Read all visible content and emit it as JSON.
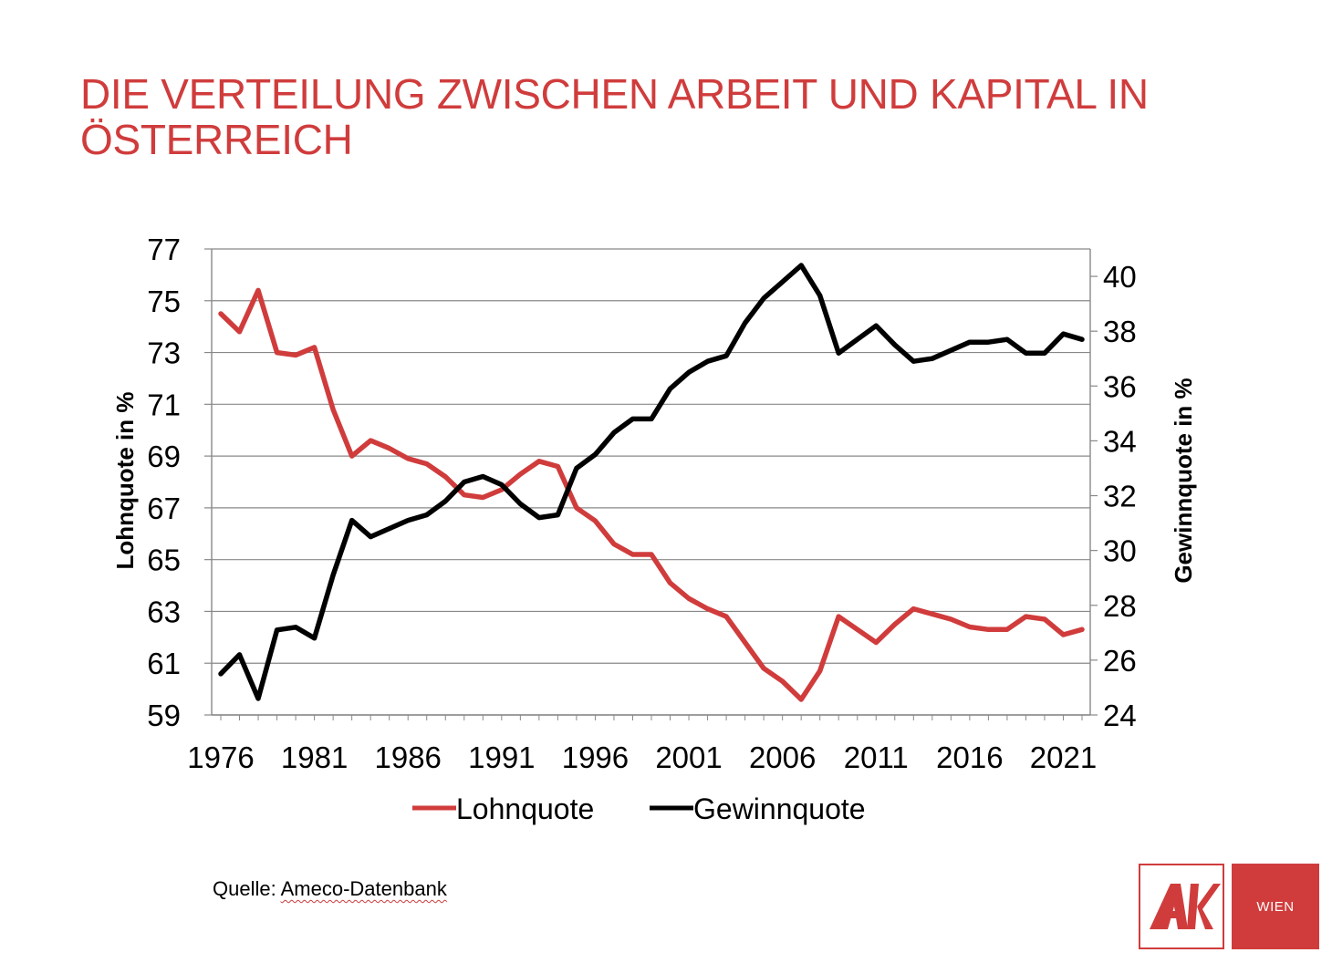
{
  "title": "DIE VERTEILUNG ZWISCHEN ARBEIT UND KAPITAL IN ÖSTERREICH",
  "source_label": "Quelle: ",
  "source_name": "Ameco-Datenbank",
  "logo": {
    "wien_label": "WIEN",
    "brand_color": "#d03c3c"
  },
  "chart_data": {
    "type": "line",
    "x": [
      1976,
      1977,
      1978,
      1979,
      1980,
      1981,
      1982,
      1983,
      1984,
      1985,
      1986,
      1987,
      1988,
      1989,
      1990,
      1991,
      1992,
      1993,
      1994,
      1995,
      1996,
      1997,
      1998,
      1999,
      2000,
      2001,
      2002,
      2003,
      2004,
      2005,
      2006,
      2007,
      2008,
      2009,
      2010,
      2011,
      2012,
      2013,
      2014,
      2015,
      2016,
      2017,
      2018,
      2019,
      2020,
      2021,
      2022
    ],
    "x_ticks": [
      "1976",
      "1981",
      "1986",
      "1991",
      "1996",
      "2001",
      "2006",
      "2011",
      "2016",
      "2021"
    ],
    "y_left": {
      "label": "Lohnquote in %",
      "min": 59,
      "max": 77,
      "ticks": [
        "59",
        "61",
        "63",
        "65",
        "67",
        "69",
        "71",
        "73",
        "75",
        "77"
      ]
    },
    "y_right": {
      "label": "Gewinnquote in %",
      "min": 24,
      "max": 41,
      "ticks": [
        "24",
        "26",
        "28",
        "30",
        "32",
        "34",
        "36",
        "38",
        "40"
      ]
    },
    "grid": true,
    "legend_position": "bottom",
    "series": [
      {
        "name": "Lohnquote",
        "axis": "left",
        "color": "#d03c3c",
        "values": [
          74.5,
          73.8,
          75.4,
          73.0,
          72.9,
          73.2,
          70.8,
          69.0,
          69.6,
          69.3,
          68.9,
          68.7,
          68.2,
          67.5,
          67.4,
          67.7,
          68.3,
          68.8,
          68.6,
          67.0,
          66.5,
          65.6,
          65.2,
          65.2,
          64.1,
          63.5,
          63.1,
          62.8,
          61.8,
          60.8,
          60.3,
          59.6,
          60.7,
          62.8,
          62.3,
          61.8,
          62.5,
          63.1,
          62.9,
          62.7,
          62.4,
          62.3,
          62.3,
          62.8,
          62.7,
          62.1,
          62.3
        ]
      },
      {
        "name": "Gewinnquote",
        "axis": "right",
        "color": "#000000",
        "values": [
          25.5,
          26.2,
          24.6,
          27.1,
          27.2,
          26.8,
          29.1,
          31.1,
          30.5,
          30.8,
          31.1,
          31.3,
          31.8,
          32.5,
          32.7,
          32.4,
          31.7,
          31.2,
          31.3,
          33.0,
          33.5,
          34.3,
          34.8,
          34.8,
          35.9,
          36.5,
          36.9,
          37.1,
          38.3,
          39.2,
          39.8,
          40.4,
          39.3,
          37.2,
          37.7,
          38.2,
          37.5,
          36.9,
          37.0,
          37.3,
          37.6,
          37.6,
          37.7,
          37.2,
          37.2,
          37.9,
          37.7
        ]
      }
    ]
  }
}
